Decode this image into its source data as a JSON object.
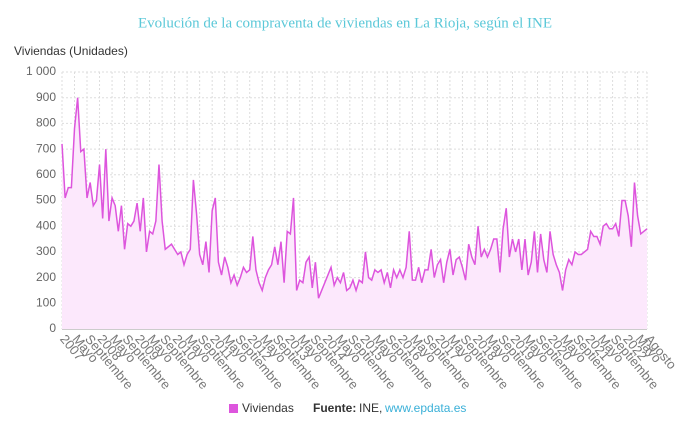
{
  "chart_data": {
    "type": "area",
    "title": "Evolución de la compraventa de viviendas en La Rioja, según el INE",
    "y_label": "Viviendas (Unidades)",
    "ylim": [
      0,
      1000
    ],
    "yticks": [
      0,
      100,
      200,
      300,
      400,
      500,
      600,
      700,
      800,
      900,
      {
        "value": 1000,
        "label": "1 000"
      }
    ],
    "grid": true,
    "categories": [
      "2007",
      null,
      null,
      null,
      "Mayo",
      null,
      null,
      null,
      "Septiembre",
      null,
      null,
      null,
      "2008",
      null,
      null,
      null,
      "Mayo",
      null,
      null,
      null,
      "Septiembre",
      null,
      null,
      null,
      "2009",
      null,
      null,
      null,
      "Mayo",
      null,
      null,
      null,
      "Septiembre",
      null,
      null,
      null,
      "2010",
      null,
      null,
      null,
      "Mayo",
      null,
      null,
      null,
      "Septiembre",
      null,
      null,
      null,
      "2011",
      null,
      null,
      null,
      "Mayo",
      null,
      null,
      null,
      "Septiembre",
      null,
      null,
      null,
      "2012",
      null,
      null,
      null,
      "Mayo",
      null,
      null,
      null,
      "Septiembre",
      null,
      null,
      null,
      "2013",
      null,
      null,
      null,
      "Mayo",
      null,
      null,
      null,
      "Septiembre",
      null,
      null,
      null,
      "2014",
      null,
      null,
      null,
      "Mayo",
      null,
      null,
      null,
      "Septiembre",
      null,
      null,
      null,
      "2015",
      null,
      null,
      null,
      "Mayo",
      null,
      null,
      null,
      "Septiembre",
      null,
      null,
      null,
      "2016",
      null,
      null,
      null,
      "Mayo",
      null,
      null,
      null,
      "Septiembre",
      null,
      null,
      null,
      "2017",
      null,
      null,
      null,
      "Mayo",
      null,
      null,
      null,
      "Septiembre",
      null,
      null,
      null,
      "2018",
      null,
      null,
      null,
      "Mayo",
      null,
      null,
      null,
      "Septiembre",
      null,
      null,
      null,
      "2019",
      null,
      null,
      null,
      "Mayo",
      null,
      null,
      null,
      "Septiembre",
      null,
      null,
      null,
      "2020",
      null,
      null,
      null,
      "Mayo",
      null,
      null,
      null,
      "Septiembre",
      null,
      null,
      null,
      "2021",
      null,
      null,
      null,
      "Mayo",
      null,
      null,
      null,
      "Septiembre",
      null,
      null,
      null,
      "2022",
      null,
      null,
      null,
      "Mayo",
      null,
      null,
      "Agosto"
    ],
    "series": [
      {
        "name": "Viviendas",
        "color": "#dd55dd",
        "fill": "#fce8fc",
        "values": [
          720,
          510,
          550,
          550,
          780,
          900,
          690,
          700,
          510,
          570,
          480,
          500,
          640,
          430,
          700,
          420,
          510,
          480,
          380,
          480,
          310,
          410,
          400,
          420,
          490,
          380,
          510,
          300,
          380,
          370,
          420,
          640,
          420,
          310,
          320,
          330,
          310,
          290,
          300,
          250,
          290,
          310,
          580,
          450,
          290,
          250,
          340,
          220,
          460,
          510,
          260,
          210,
          280,
          240,
          180,
          210,
          170,
          200,
          240,
          220,
          230,
          360,
          230,
          180,
          150,
          200,
          230,
          250,
          320,
          250,
          340,
          180,
          380,
          370,
          510,
          150,
          190,
          180,
          260,
          280,
          160,
          260,
          120,
          150,
          180,
          210,
          240,
          170,
          200,
          180,
          220,
          150,
          160,
          190,
          150,
          190,
          180,
          300,
          200,
          190,
          230,
          220,
          230,
          180,
          220,
          160,
          230,
          200,
          230,
          200,
          240,
          380,
          190,
          190,
          240,
          180,
          230,
          230,
          310,
          200,
          250,
          270,
          180,
          260,
          310,
          210,
          270,
          280,
          240,
          190,
          330,
          280,
          250,
          400,
          280,
          310,
          280,
          310,
          350,
          350,
          220,
          390,
          470,
          280,
          350,
          300,
          350,
          230,
          350,
          210,
          260,
          380,
          220,
          370,
          270,
          220,
          380,
          290,
          250,
          220,
          150,
          230,
          270,
          250,
          300,
          290,
          290,
          300,
          310,
          380,
          360,
          360,
          330,
          400,
          410,
          390,
          390,
          410,
          360,
          500,
          500,
          440,
          320,
          570,
          440,
          370,
          380,
          390
        ]
      }
    ],
    "source_label": "Fuente:",
    "source_text": "INE,",
    "source_link": "www.epdata.es"
  }
}
